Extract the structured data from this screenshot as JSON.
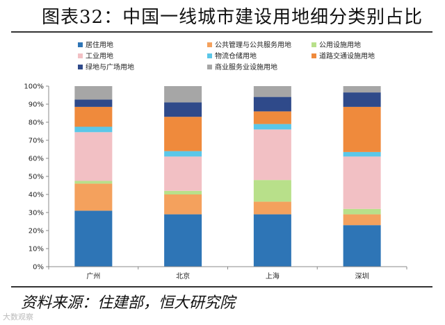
{
  "title": "图表32：中国一线城市建设用地细分类别占比",
  "source": "资料来源：住建部，恒大研究院",
  "watermark": "大数观察",
  "chart_data": {
    "type": "bar",
    "stacked": true,
    "categories": [
      "广州",
      "北京",
      "上海",
      "深圳"
    ],
    "ylim": [
      0,
      100
    ],
    "y_ticks": [
      "0%",
      "10%",
      "20%",
      "30%",
      "40%",
      "50%",
      "60%",
      "70%",
      "80%",
      "90%",
      "100%"
    ],
    "legend_position": "top",
    "series": [
      {
        "name": "居住用地",
        "color": "#2e75b6",
        "values": [
          31,
          29,
          29,
          23
        ]
      },
      {
        "name": "公共管理与公共服务用地",
        "color": "#f4a15d",
        "values": [
          15,
          11,
          7,
          6
        ]
      },
      {
        "name": "公用设施用地",
        "color": "#b8e08a",
        "values": [
          1.5,
          2,
          12,
          3
        ]
      },
      {
        "name": "工业用地",
        "color": "#f2c0c4",
        "values": [
          27,
          19,
          28,
          29
        ]
      },
      {
        "name": "物流仓储用地",
        "color": "#5bc7e8",
        "values": [
          3,
          3,
          3,
          2.5
        ]
      },
      {
        "name": "道路交通设施用地",
        "color": "#ef8a3c",
        "values": [
          11,
          19,
          7,
          25
        ]
      },
      {
        "name": "绿地与广场用地",
        "color": "#2f4a8a",
        "values": [
          4,
          8,
          8,
          8
        ]
      },
      {
        "name": "商业服务业设施用地",
        "color": "#a6a6a6",
        "values": [
          7.5,
          9,
          6,
          3.5
        ]
      }
    ]
  }
}
